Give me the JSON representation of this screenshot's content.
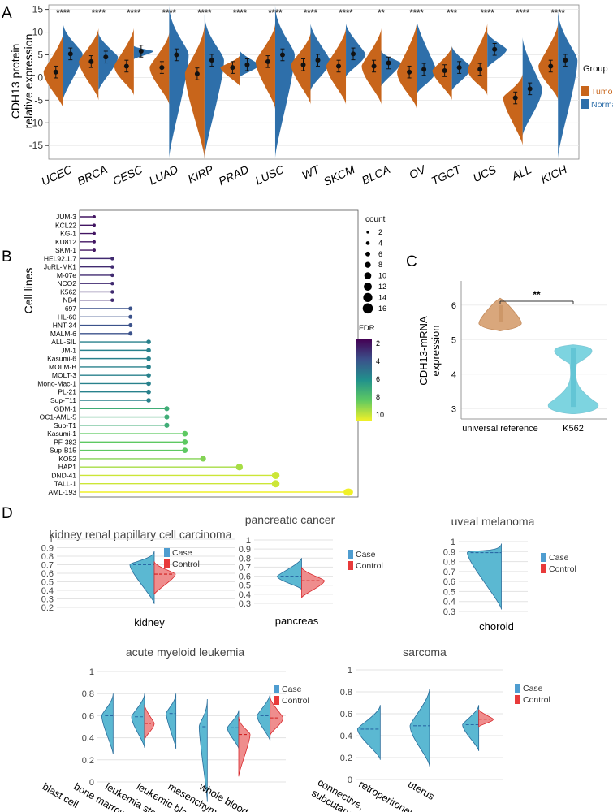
{
  "panel_labels": {
    "a": "A",
    "b": "B",
    "c": "C",
    "d": "D"
  },
  "colors": {
    "tumor": "#c8651b",
    "normal": "#2e6faa",
    "case": "#4f9dd0",
    "control": "#e83a3a",
    "caseFill": "#5bb8d2",
    "controlFill": "#ef8d8d",
    "violinC1": "#d9a77c",
    "violinC2": "#7dd4e0"
  },
  "chart_data": [
    {
      "id": "A",
      "type": "violin",
      "ylabel": [
        "CDH13 protein",
        "relative expression"
      ],
      "ylim": [
        -18,
        16
      ],
      "yticks": [
        -15,
        -10,
        -5,
        0,
        5,
        10,
        15
      ],
      "legend": {
        "title": "Group",
        "entries": [
          "Tumor",
          "Normal"
        ]
      },
      "categories": [
        "UCEC",
        "BRCA",
        "CESC",
        "LUAD",
        "KIRP",
        "PRAD",
        "LUSC",
        "WT",
        "SKCM",
        "BLCA",
        "OV",
        "TGCT",
        "UCS",
        "ALL",
        "KICH"
      ],
      "significance": [
        "****",
        "****",
        "****",
        "****",
        "****",
        "****",
        "****",
        "****",
        "****",
        "**",
        "****",
        "***",
        "****",
        "****",
        "****"
      ],
      "tumor": {
        "median": [
          1.2,
          3.5,
          2.5,
          2.2,
          0.8,
          2.2,
          3.5,
          2.8,
          2.5,
          2.5,
          1.2,
          1.5,
          1.8,
          -4.5,
          2.5
        ],
        "min": [
          -7,
          -5,
          -4,
          -6,
          -18,
          -2,
          -7,
          -6,
          -6,
          -6,
          -7,
          -5,
          -4,
          -15,
          -5
        ],
        "max": [
          10,
          11,
          11,
          10,
          12,
          5,
          12,
          10,
          11,
          11,
          12,
          7,
          12,
          1,
          12
        ]
      },
      "normal": {
        "median": [
          5.2,
          4.5,
          5.8,
          5.0,
          3.8,
          2.8,
          5.0,
          3.8,
          5.2,
          3.2,
          1.8,
          2.2,
          6.2,
          -2.5,
          3.8
        ],
        "min": [
          -5,
          -3,
          4,
          -18,
          -18,
          0,
          -18,
          -3,
          0,
          -2,
          -4,
          -3,
          2,
          -13,
          -18
        ],
        "max": [
          12,
          10,
          7,
          16,
          14,
          6,
          16,
          12,
          12,
          6,
          13,
          7,
          10,
          9,
          15
        ]
      }
    },
    {
      "id": "B",
      "type": "lollipop",
      "ylabel": "Cell lines",
      "size_legend": {
        "title": "count",
        "values": [
          2,
          4,
          6,
          8,
          10,
          12,
          14,
          16
        ]
      },
      "color_legend": {
        "title": "FDR",
        "ticks": [
          2,
          4,
          6,
          8,
          10
        ]
      },
      "categories": [
        "JUM-3",
        "KCL22",
        "KG-1",
        "KU812",
        "SKM-1",
        "HEL92.1.7",
        "JuRL-MK1",
        "M-07e",
        "NCO2",
        "K562",
        "NB4",
        "697",
        "HL-60",
        "HNT-34",
        "MALM-6",
        "ALL-SIL",
        "JM-1",
        "Kasumi-6",
        "MOLM-B",
        "MOLT-3",
        "Mono-Mac-1",
        "PL-21",
        "Sup-T11",
        "GDM-1",
        "OC1-AML-5",
        "Sup-T1",
        "Kasumi-1",
        "PF-382",
        "Sup-B15",
        "KO52",
        "HAP1",
        "DND-41",
        "TALL-1",
        "AML-193"
      ],
      "counts": [
        2,
        2,
        2,
        2,
        2,
        3,
        3,
        3,
        3,
        3,
        3,
        4,
        4,
        4,
        4,
        5,
        5,
        5,
        5,
        5,
        5,
        5,
        5,
        6,
        6,
        6,
        7,
        7,
        7,
        8,
        10,
        12,
        12,
        16
      ],
      "fdr": [
        2.5,
        2.5,
        2.5,
        2.5,
        2.5,
        3,
        3,
        3,
        3,
        3,
        3,
        4,
        4,
        4,
        4,
        5.5,
        5.5,
        5.5,
        5.5,
        5.5,
        5.5,
        5.5,
        5.5,
        7,
        7,
        7,
        8,
        8,
        8,
        8.5,
        9,
        9.5,
        9.5,
        10
      ]
    },
    {
      "id": "C",
      "type": "violin",
      "ylabel": [
        "CDH13-mRNA",
        "expression"
      ],
      "ylim": [
        2.7,
        6.7
      ],
      "yticks": [
        3,
        4,
        5,
        6
      ],
      "categories": [
        "universal reference",
        "K562"
      ],
      "significance": "**"
    },
    {
      "id": "D1",
      "type": "split-violin",
      "title": "kidney renal papillary cell carcinoma",
      "ylim": [
        0.2,
        1.0
      ],
      "yticks": [
        "0.2",
        "0.3",
        "0.4",
        "0.5",
        "0.6",
        "0.7",
        "0.8",
        "0.9",
        "1"
      ],
      "categories": [
        "kidney"
      ],
      "case_median": [
        0.7
      ],
      "control_median": [
        0.59
      ],
      "legend": [
        "Case",
        "Control"
      ]
    },
    {
      "id": "D2",
      "type": "split-violin",
      "title": "pancreatic cancer",
      "ylim": [
        0.3,
        1.0
      ],
      "yticks": [
        "0.3",
        "0.4",
        "0.5",
        "0.6",
        "0.7",
        "0.8",
        "0.9",
        "1"
      ],
      "categories": [
        "pancreas"
      ],
      "case_median": [
        0.6
      ],
      "control_median": [
        0.55
      ],
      "legend": [
        "Case",
        "Control"
      ]
    },
    {
      "id": "D3",
      "type": "split-violin",
      "title": "uveal melanoma",
      "ylim": [
        0.3,
        1.0
      ],
      "yticks": [
        "0.3",
        "0.4",
        "0.5",
        "0.6",
        "0.7",
        "0.8",
        "0.9",
        "1"
      ],
      "categories": [
        "choroid"
      ],
      "case_median": [
        0.89
      ],
      "control_median": [
        null
      ],
      "legend": [
        "Case",
        "Control"
      ]
    },
    {
      "id": "D4",
      "type": "split-violin",
      "title": "acute myeloid leukemia",
      "ylim": [
        0,
        1.0
      ],
      "yticks": [
        "0",
        "0.2",
        "0.4",
        "0.6",
        "0.8",
        "1"
      ],
      "categories": [
        "blast cell",
        "bone marrow",
        "leukemia stem cell",
        "leukemic blast",
        "mesenchymal stromal cell",
        "whole blood"
      ],
      "case_median": [
        0.6,
        0.59,
        0.62,
        0.5,
        0.49,
        0.6
      ],
      "control_median": [
        null,
        0.53,
        null,
        null,
        0.43,
        0.58
      ],
      "legend": [
        "Case",
        "Control"
      ]
    },
    {
      "id": "D5",
      "type": "split-violin",
      "title": "sarcoma",
      "ylim": [
        0,
        1.0
      ],
      "yticks": [
        "0",
        "0.2",
        "0.4",
        "0.6",
        "0.8",
        "1"
      ],
      "categories": [
        "connective, subcutaneous",
        "retroperitoneum",
        "uterus"
      ],
      "case_median": [
        0.46,
        0.49,
        0.5
      ],
      "control_median": [
        null,
        null,
        0.55
      ],
      "legend": [
        "Case",
        "Control"
      ]
    }
  ]
}
